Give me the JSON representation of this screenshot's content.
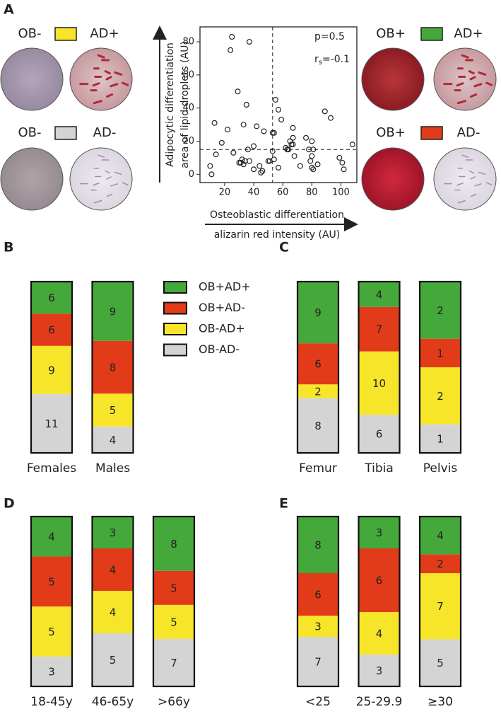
{
  "images": [
    {
      "labels": [
        "OB-",
        "AD+"
      ],
      "color": "#f7e52a"
    },
    {
      "labels": [
        "OB-",
        "AD-"
      ],
      "color": "#d4d4d4"
    },
    {
      "labels": [
        "OB+",
        "AD+"
      ],
      "color": "#45a83a"
    },
    {
      "labels": [
        "OB+",
        "AD-"
      ],
      "color": "#e23b1a"
    }
  ],
  "chart_data": [
    {
      "type": "scatter",
      "panel": "A",
      "xlabel": [
        "Osteoblastic differentiation",
        "alizarin red intensity (AU)"
      ],
      "ylabel": [
        "Adipocytic differentiation",
        "area of lipid droplets (AU)"
      ],
      "stat_labels": [
        "p=0.5",
        [
          "r",
          "s",
          "=-0.1"
        ]
      ],
      "xlim": [
        3,
        111
      ],
      "ylim": [
        -5,
        89
      ],
      "xticks": [
        20,
        40,
        60,
        80,
        100
      ],
      "yticks": [
        0,
        20,
        40,
        60,
        80
      ],
      "xline": 53,
      "yline": 15,
      "x": [
        25,
        37,
        24,
        29,
        35,
        22,
        13,
        33,
        42,
        47,
        53,
        54,
        55,
        57,
        59,
        67,
        65,
        62,
        64,
        67,
        67,
        68,
        76,
        80,
        78,
        80,
        81,
        84,
        89,
        93,
        99,
        101,
        102,
        108,
        72,
        79,
        81,
        80,
        57,
        54,
        53,
        51,
        50,
        46,
        45,
        44,
        40,
        37,
        36,
        32,
        31,
        30,
        33,
        34,
        18,
        14,
        10,
        11,
        26,
        40,
        66,
        63
      ],
      "values": [
        83,
        80,
        75,
        50,
        42,
        27,
        31,
        30,
        29,
        26,
        25,
        25,
        45,
        39,
        33,
        28,
        20,
        16,
        15,
        22,
        18,
        11,
        22,
        20,
        15,
        11,
        15,
        6,
        38,
        34,
        10,
        7,
        3,
        18,
        5,
        8,
        3,
        4,
        4,
        9,
        14,
        8,
        8,
        2,
        1,
        5,
        17,
        8,
        15,
        9,
        7,
        7,
        6,
        8,
        19,
        12,
        5,
        0,
        13,
        3,
        18,
        15
      ]
    },
    {
      "type": "bar",
      "panel": "B",
      "legend": true,
      "categories": [
        "Females",
        "Males"
      ],
      "series": [
        {
          "name": "OB+AD+",
          "color": "#45a83a",
          "values": [
            6,
            9
          ]
        },
        {
          "name": "OB+AD-",
          "color": "#e23b1a",
          "values": [
            6,
            8
          ]
        },
        {
          "name": "OB-AD+",
          "color": "#f7e52a",
          "values": [
            9,
            5
          ]
        },
        {
          "name": "OB-AD-",
          "color": "#d4d4d4",
          "values": [
            11,
            4
          ]
        }
      ]
    },
    {
      "type": "bar",
      "panel": "C",
      "legend": false,
      "categories": [
        "Femur",
        "Tibia",
        "Pelvis"
      ],
      "series": [
        {
          "color": "#45a83a",
          "values": [
            9,
            4,
            2
          ]
        },
        {
          "color": "#e23b1a",
          "values": [
            6,
            7,
            1
          ]
        },
        {
          "color": "#f7e52a",
          "values": [
            2,
            10,
            2
          ]
        },
        {
          "color": "#d4d4d4",
          "values": [
            8,
            6,
            1
          ]
        }
      ]
    },
    {
      "type": "bar",
      "panel": "D",
      "legend": false,
      "categories": [
        "18-45y",
        "46-65y",
        ">66y"
      ],
      "series": [
        {
          "color": "#45a83a",
          "values": [
            4,
            3,
            8
          ]
        },
        {
          "color": "#e23b1a",
          "values": [
            5,
            4,
            5
          ]
        },
        {
          "color": "#f7e52a",
          "values": [
            5,
            4,
            5
          ]
        },
        {
          "color": "#d4d4d4",
          "values": [
            3,
            5,
            7
          ]
        }
      ]
    },
    {
      "type": "bar",
      "panel": "E",
      "legend": false,
      "categories": [
        "<25",
        "25-29.9",
        "≥30"
      ],
      "series": [
        {
          "color": "#45a83a",
          "values": [
            8,
            3,
            4
          ]
        },
        {
          "color": "#e23b1a",
          "values": [
            6,
            6,
            2
          ]
        },
        {
          "color": "#f7e52a",
          "values": [
            3,
            4,
            7
          ]
        },
        {
          "color": "#d4d4d4",
          "values": [
            7,
            3,
            5
          ]
        }
      ]
    }
  ]
}
